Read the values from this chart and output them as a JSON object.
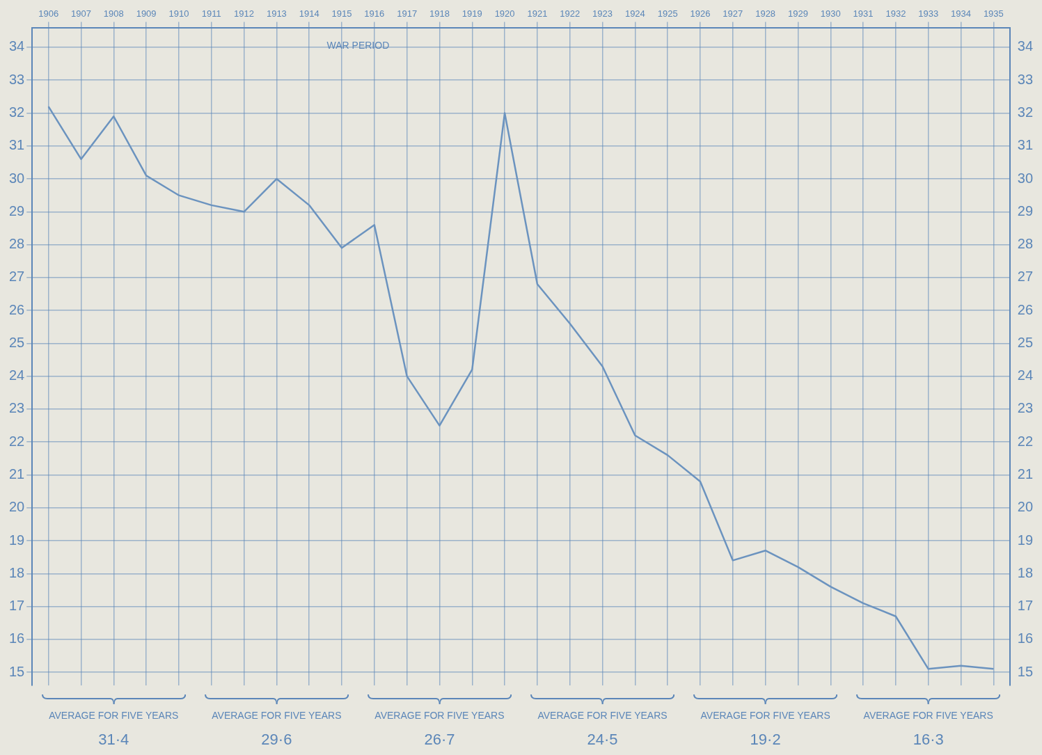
{
  "chart_data": {
    "type": "line",
    "categories": [
      "1906",
      "1907",
      "1908",
      "1909",
      "1910",
      "1911",
      "1912",
      "1913",
      "1914",
      "1915",
      "1916",
      "1917",
      "1918",
      "1919",
      "1920",
      "1921",
      "1922",
      "1923",
      "1924",
      "1925",
      "1926",
      "1927",
      "1928",
      "1929",
      "1930",
      "1931",
      "1932",
      "1933",
      "1934",
      "1935"
    ],
    "series": [
      {
        "color": "#6b93bf",
        "values": [
          32.2,
          30.6,
          31.9,
          30.1,
          29.5,
          29.2,
          29.0,
          30.0,
          29.2,
          27.9,
          28.6,
          24.0,
          22.5,
          24.2,
          32.0,
          26.8,
          25.6,
          24.3,
          22.2,
          21.6,
          20.8,
          18.4,
          18.7,
          18.2,
          17.6,
          17.1,
          16.7,
          15.1,
          15.2,
          15.1
        ]
      }
    ],
    "ylim": [
      14.6,
      34.6
    ],
    "yticks": [
      15,
      16,
      17,
      18,
      19,
      20,
      21,
      22,
      23,
      24,
      25,
      26,
      27,
      28,
      29,
      30,
      31,
      32,
      33,
      34
    ],
    "y2lim": [
      14.6,
      34.6
    ],
    "y2ticks": [
      15,
      16,
      17,
      18,
      19,
      20,
      21,
      22,
      23,
      24,
      25,
      26,
      27,
      28,
      29,
      30,
      31,
      32,
      33,
      34
    ],
    "grid": true,
    "legend": false,
    "marker": "none",
    "line_style": "solid",
    "annotations": [
      "WAR PERIOD",
      "AVERAGE FOR FIVE YEARS\n31·4",
      "AVERAGE FOR FIVE YEARS\n29·6",
      "AVERAGE FOR FIVE YEARS\n26·7",
      "AVERAGE FOR FIVE YEARS\n24·5",
      "AVERAGE FOR FIVE YEARS\n19·2",
      "AVERAGE FOR FIVE YEARS\n16·3"
    ]
  }
}
